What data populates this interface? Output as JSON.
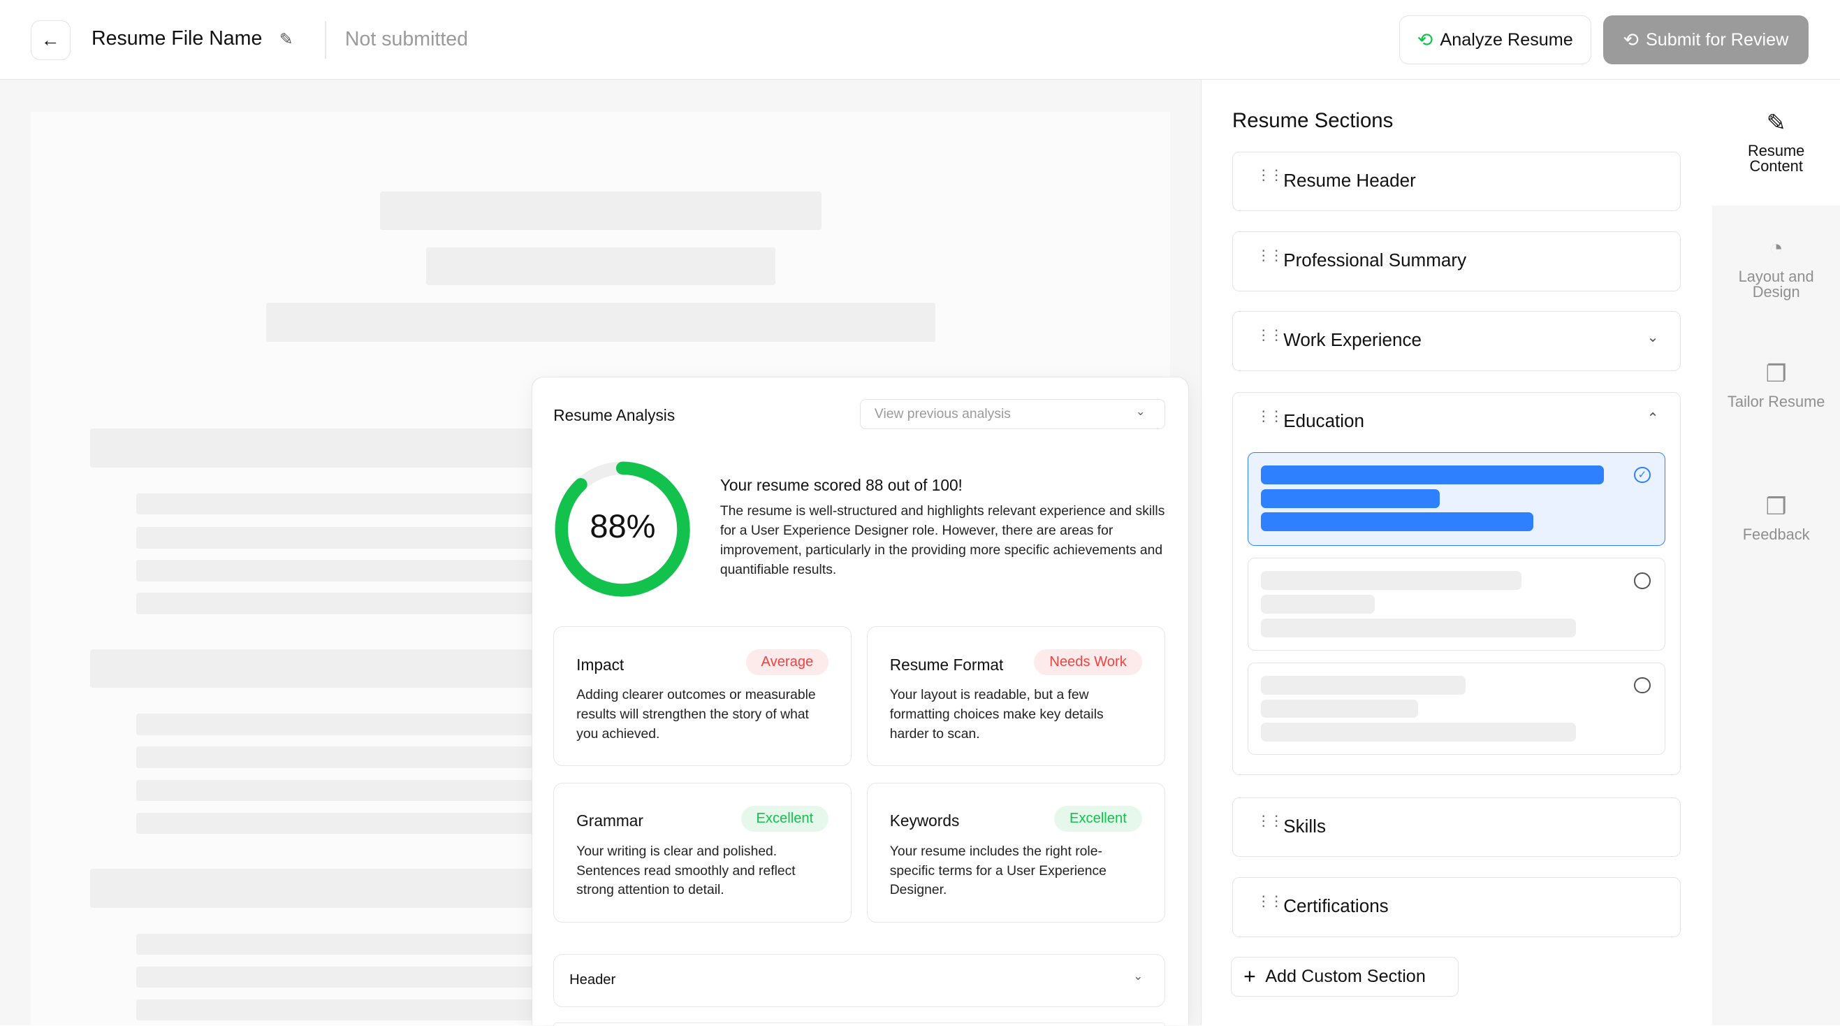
{
  "header": {
    "title": "Resume File Name",
    "status": "Not submitted",
    "analyze_label": "Analyze Resume",
    "submit_label": "Submit for Review"
  },
  "colors": {
    "accent_green": "#12c24d",
    "accent_blue": "#2f80ff",
    "badge_red": "#ef4444",
    "submit_gray": "#9b9b9b"
  },
  "analysis": {
    "title": "Resume Analysis",
    "dropdown_placeholder": "View previous analysis",
    "score_percent": 88,
    "score_label": "88%",
    "score_heading": "Your resume scored 88 out of 100!",
    "summary": "The resume is well-structured and highlights relevant experience and skills for a User Experience Designer role. However, there are areas for improvement, particularly in the providing more specific achievements and quantifiable results.",
    "cards": [
      {
        "title": "Impact",
        "badge": "Average",
        "tone": "red",
        "desc": "Adding clearer outcomes or measurable results will strengthen the story of what you achieved."
      },
      {
        "title": "Resume Format",
        "badge": "Needs Work",
        "tone": "red",
        "desc": "Your layout is readable, but a few formatting choices make key details harder to scan."
      },
      {
        "title": "Grammar",
        "badge": "Excellent",
        "tone": "green",
        "desc": "Your writing is clear and polished. Sentences read smoothly and reflect strong attention to detail."
      },
      {
        "title": "Keywords",
        "badge": "Excellent",
        "tone": "green",
        "desc": "Your resume includes the right role-specific terms for a User Experience Designer."
      }
    ],
    "accordion_label": "Header"
  },
  "sections": {
    "title": "Resume Sections",
    "items": [
      {
        "label": "Resume Header"
      },
      {
        "label": "Professional Summary"
      },
      {
        "label": "Work Experience",
        "state": "collapsed"
      },
      {
        "label": "Education",
        "state": "expanded"
      },
      {
        "label": "Skills"
      },
      {
        "label": "Certifications"
      }
    ],
    "add_label": "Add Custom Section"
  },
  "sidenav": {
    "items": [
      {
        "label": "Resume Content",
        "icon": "pencil-icon",
        "active": true
      },
      {
        "label": "Layout and Design",
        "icon": "palette-icon"
      },
      {
        "label": "Tailor Resume",
        "icon": "tailor-file-icon"
      },
      {
        "label": "Feedback",
        "icon": "feedback-icon"
      }
    ]
  }
}
